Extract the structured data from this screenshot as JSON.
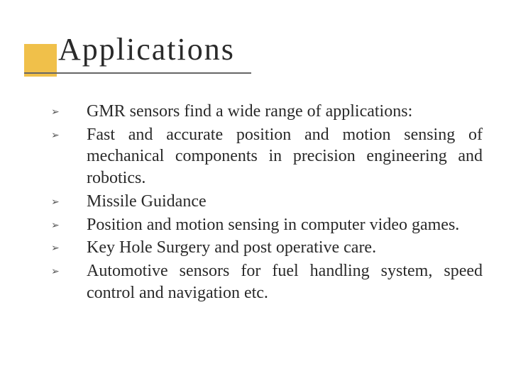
{
  "slide": {
    "title": "Applications",
    "decoration_color": "#f0c04a",
    "underline_color": "#666666",
    "title_fontsize": 44,
    "title_letter_spacing": 2,
    "body_fontsize": 24,
    "bullet_glyph": "➢",
    "bullets": [
      "GMR sensors find a wide range of applications:",
      "Fast and accurate position and motion sensing of mechanical components in precision engineering and robotics.",
      "Missile Guidance",
      "Position and motion sensing in computer video games.",
      "Key Hole Surgery and post operative care.",
      "Automotive sensors for fuel handling system, speed control and navigation etc."
    ]
  }
}
